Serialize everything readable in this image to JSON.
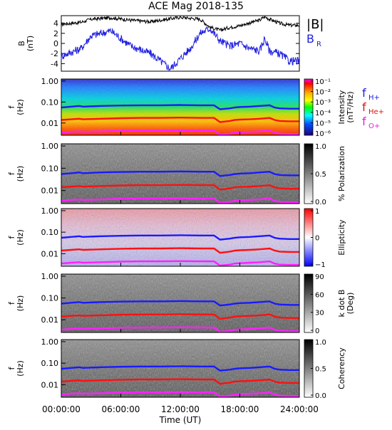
{
  "title": "ACE Mag 2018-135",
  "xlabel": "Time (UT)",
  "x_ticks": [
    "00:00:00",
    "06:00:00",
    "12:00:00",
    "18:00:00",
    "24:00:00"
  ],
  "legend_top": {
    "b_label": "|B|",
    "br_label": "B",
    "br_sub": "R",
    "b_color": "#000000",
    "br_color": "#2020e0"
  },
  "legend_spec": {
    "h_label": "f",
    "h_sub": "H+",
    "h_color": "#2020e0",
    "he_label": "f",
    "he_sub": "He+",
    "he_color": "#e01010",
    "o_label": "f",
    "o_sub": "O+",
    "o_color": "#e020e0"
  },
  "colors": {
    "f_h": "#1a1aff",
    "f_he": "#ff1010",
    "f_o": "#ff20ff"
  },
  "chart_data": [
    {
      "type": "line",
      "panel": "b-field",
      "ylabel": "B",
      "yunit": "(nT)",
      "ylim": [
        -5.5,
        5.5
      ],
      "yticks": [
        "4",
        "2",
        "0",
        "-2",
        "-4"
      ],
      "x_hours": [
        0,
        2,
        3,
        5,
        7,
        9,
        10,
        11,
        12,
        13,
        14,
        15,
        16,
        17,
        18,
        19,
        20,
        20.5,
        21,
        22,
        23,
        24
      ],
      "series": [
        {
          "name": "|B|",
          "values": [
            3.8,
            4.2,
            4.8,
            5.1,
            4.6,
            4.3,
            4.6,
            4.9,
            5.2,
            5.0,
            4.8,
            3.2,
            2.6,
            3.2,
            3.5,
            4.1,
            4.6,
            5.3,
            4.8,
            4.0,
            3.6,
            3.6
          ]
        },
        {
          "name": "B_R",
          "values": [
            -2.5,
            -1.0,
            1.5,
            2.5,
            -0.5,
            -2.0,
            -3.5,
            -5.0,
            -3.0,
            -1.0,
            2.0,
            3.0,
            0.5,
            -0.5,
            0.0,
            -1.0,
            -1.5,
            1.0,
            -1.5,
            -2.0,
            -3.5,
            -3.5
          ]
        }
      ]
    },
    {
      "type": "heatmap",
      "panel": "intensity",
      "ylabel": "f",
      "yunit": "(Hz)",
      "yticks": [
        "1.00",
        "0.10",
        "0.01"
      ],
      "colorbar": {
        "label": "Intensity",
        "unit": "(nT²/Hz)",
        "ticks": [
          "10⁻¹",
          "10⁻²",
          "10⁻³",
          "10⁻⁴",
          "10⁻⁵",
          "10⁻⁶"
        ]
      }
    },
    {
      "type": "heatmap",
      "panel": "polarization",
      "ylabel": "f",
      "yunit": "(Hz)",
      "yticks": [
        "1.00",
        "0.10",
        "0.01"
      ],
      "colorbar": {
        "label": "% Polarization",
        "unit": "",
        "ticks": [
          "1.0",
          "0.5",
          "0.0"
        ]
      }
    },
    {
      "type": "heatmap",
      "panel": "ellipticity",
      "ylabel": "f",
      "yunit": "(Hz)",
      "yticks": [
        "1.00",
        "0.10",
        "0.01"
      ],
      "colorbar": {
        "label": "Ellipticity",
        "unit": "",
        "ticks": [
          "1",
          "0",
          "−1"
        ]
      }
    },
    {
      "type": "heatmap",
      "panel": "kdotb",
      "ylabel": "f",
      "yunit": "(Hz)",
      "yticks": [
        "1.00",
        "0.10",
        "0.01"
      ],
      "colorbar": {
        "label": "k dot B",
        "unit": "(Deg)",
        "ticks": [
          "90",
          "60",
          "30",
          "0"
        ]
      }
    },
    {
      "type": "heatmap",
      "panel": "coherency",
      "ylabel": "f",
      "yunit": "(Hz)",
      "yticks": [
        "1.00",
        "0.10",
        "0.01"
      ],
      "colorbar": {
        "label": "Coherency",
        "unit": "",
        "ticks": [
          "1.0",
          "0.5",
          "0.0"
        ]
      }
    }
  ],
  "gyro_lines": {
    "x_hours": [
      0,
      1,
      1.8,
      2.2,
      4,
      6,
      8,
      10,
      12,
      14,
      15.4,
      16,
      17,
      17.5,
      18,
      19,
      20,
      21,
      21.5,
      22,
      23,
      24
    ],
    "f_h_hz": [
      0.055,
      0.06,
      0.065,
      0.06,
      0.065,
      0.068,
      0.07,
      0.07,
      0.072,
      0.07,
      0.07,
      0.045,
      0.05,
      0.055,
      0.058,
      0.06,
      0.065,
      0.07,
      0.055,
      0.05,
      0.048,
      0.048
    ],
    "f_he_hz": [
      0.014,
      0.015,
      0.016,
      0.015,
      0.016,
      0.017,
      0.0175,
      0.0175,
      0.018,
      0.0175,
      0.0175,
      0.011,
      0.0125,
      0.014,
      0.0145,
      0.015,
      0.016,
      0.0175,
      0.014,
      0.0125,
      0.012,
      0.012
    ],
    "f_o_hz": [
      0.0035,
      0.0038,
      0.004,
      0.0038,
      0.004,
      0.0043,
      0.0044,
      0.0044,
      0.0045,
      0.0044,
      0.0044,
      0.0028,
      0.0031,
      0.0035,
      0.0036,
      0.0038,
      0.004,
      0.0044,
      0.0035,
      0.0031,
      0.003,
      0.003
    ]
  }
}
